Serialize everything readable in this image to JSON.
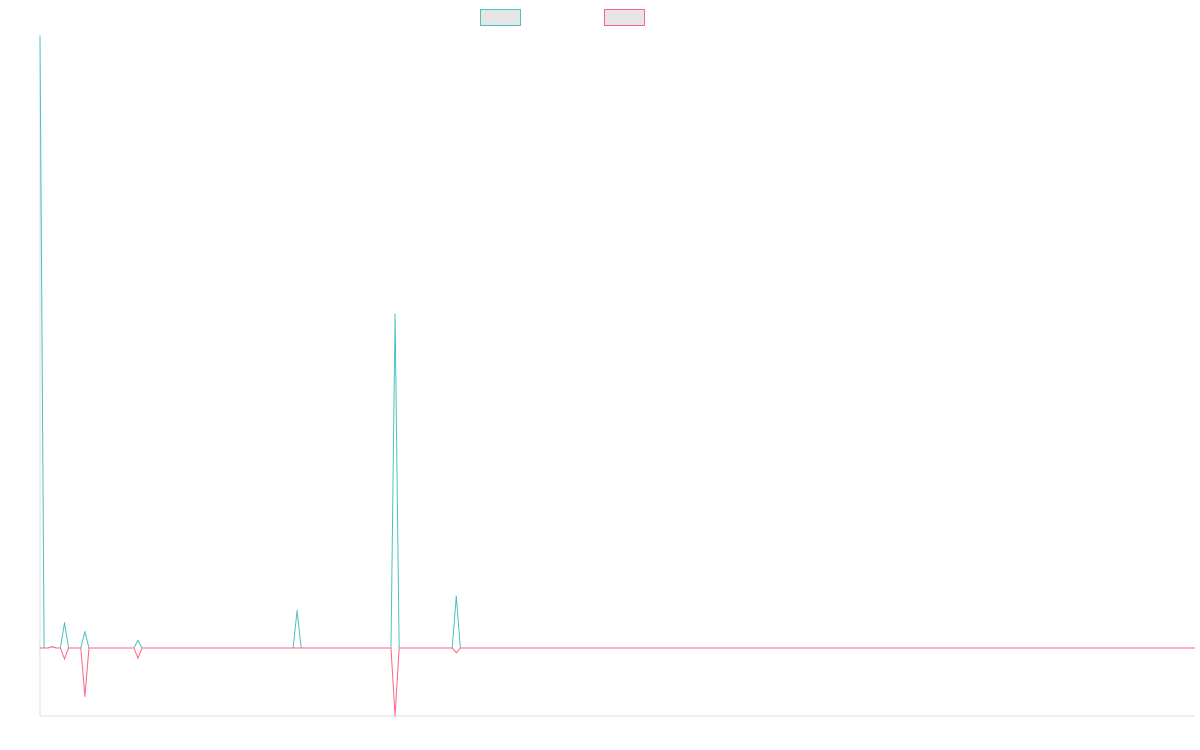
{
  "chart_data": {
    "type": "line",
    "title": "",
    "xlabel": "",
    "ylabel": "",
    "x_count": 284,
    "ylim": [
      -10,
      90
    ],
    "grid": false,
    "legend_position": "top-center",
    "series": [
      {
        "color": "#4bc0c0",
        "fill": "#e5e5e5",
        "points": [
          [
            0,
            90
          ],
          [
            1,
            0
          ],
          [
            3,
            0.2
          ],
          [
            6,
            3.7
          ],
          [
            11,
            2.4
          ],
          [
            24,
            1.1
          ],
          [
            63,
            5.5
          ],
          [
            87,
            49.1
          ],
          [
            102,
            7.6
          ]
        ]
      },
      {
        "color": "#ff6384",
        "fill": "#e5e5e5",
        "points": [
          [
            0,
            0
          ],
          [
            3,
            0.2
          ],
          [
            6,
            -1.6
          ],
          [
            11,
            -7.1
          ],
          [
            24,
            -1.5
          ],
          [
            87,
            -10.0
          ],
          [
            102,
            -0.7
          ]
        ]
      }
    ]
  }
}
